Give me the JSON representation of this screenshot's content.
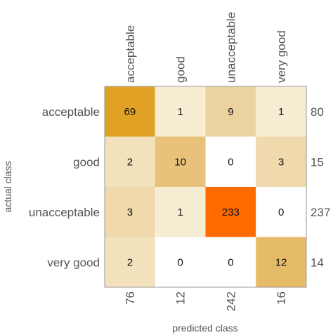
{
  "chart_data": {
    "type": "heatmap",
    "title": "",
    "xlabel": "predicted class",
    "ylabel": "actual class",
    "row_labels": [
      "acceptable",
      "good",
      "unacceptable",
      "very good"
    ],
    "col_labels": [
      "acceptable",
      "good",
      "unacceptable",
      "very good"
    ],
    "values": [
      [
        69,
        1,
        9,
        1
      ],
      [
        2,
        10,
        0,
        3
      ],
      [
        3,
        1,
        233,
        0
      ],
      [
        2,
        0,
        0,
        12
      ]
    ],
    "row_totals": [
      "80",
      "15",
      "237",
      "14"
    ],
    "col_totals": [
      "76",
      "12",
      "242",
      "16"
    ],
    "cell_colors": [
      [
        "#e0a125",
        "#f6edd3",
        "#ebd3a0",
        "#f6edd3"
      ],
      [
        "#f2e1ba",
        "#e8c27a",
        "#ffffff",
        "#efd9ad"
      ],
      [
        "#efd9ad",
        "#f6edd3",
        "#ff6a00",
        "#ffffff"
      ],
      [
        "#f2e1ba",
        "#ffffff",
        "#ffffff",
        "#e5bb68"
      ]
    ]
  }
}
